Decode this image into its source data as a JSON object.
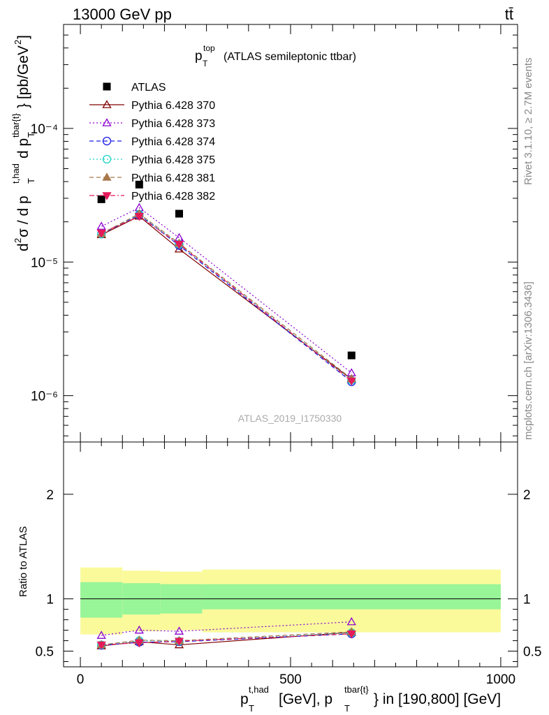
{
  "header": {
    "left": "13000 GeV pp",
    "right": "tt̄",
    "side_top": "Rivet 3.1.10, ≥ 2.7M events",
    "side_bottom": "mcplots.cern.ch [arXiv:1306.3436]",
    "watermark": "ATLAS_2019_I1750330"
  },
  "colors": {
    "data": "#000000",
    "s370": "#800000",
    "s373": "#8B00D0",
    "s374": "#1E1EE6",
    "s375": "#1ED2C8",
    "s381": "#A8784C",
    "s382": "#E6195A",
    "band_inner": "#98F598",
    "band_outer": "#FAFA9B"
  },
  "chart_data": [
    {
      "type": "line",
      "panel": "main",
      "title": "p_T^top (ATLAS semileptonic ttbar)",
      "xlabel": "p_T^{t,had} [GeV], p_T^{tbar{t}} in [190,800] [GeV]",
      "ylabel": "d²σ / d p_T^{t,had} d p_T^{tbar{t}} [pb/GeV²]",
      "yscale": "log",
      "xlim": [
        -40,
        1040
      ],
      "ylim": [
        4.5e-07,
        0.0006
      ],
      "x": [
        50,
        140,
        235,
        645
      ],
      "xerr": [
        [
          0,
          100
        ],
        [
          100,
          190
        ],
        [
          190,
          290
        ],
        [
          290,
          1000
        ]
      ],
      "ytick_labels": [
        "10⁻⁶",
        "10⁻⁵",
        "10⁻⁴"
      ],
      "series": [
        {
          "name": "ATLAS",
          "values": [
            2.95e-05,
            3.8e-05,
            2.3e-05,
            2e-06
          ],
          "marker": "square",
          "style": "none",
          "color_key": "data"
        },
        {
          "name": "Pythia 6.428 370",
          "values": [
            1.6e-05,
            2.2e-05,
            1.25e-05,
            1.33e-06
          ],
          "marker": "triangle-open",
          "style": "solid",
          "color_key": "s370"
        },
        {
          "name": "Pythia 6.428 373",
          "values": [
            1.85e-05,
            2.55e-05,
            1.52e-05,
            1.48e-06
          ],
          "marker": "triangle-open",
          "style": "dotted",
          "color_key": "s373"
        },
        {
          "name": "Pythia 6.428 374",
          "values": [
            1.62e-05,
            2.25e-05,
            1.33e-05,
            1.27e-06
          ],
          "marker": "circle-open",
          "style": "dashed",
          "color_key": "s374"
        },
        {
          "name": "Pythia 6.428 375",
          "values": [
            1.62e-05,
            2.28e-05,
            1.36e-05,
            1.3e-06
          ],
          "marker": "circle-open",
          "style": "dotted",
          "color_key": "s375"
        },
        {
          "name": "Pythia 6.428 381",
          "values": [
            1.63e-05,
            2.3e-05,
            1.38e-05,
            1.34e-06
          ],
          "marker": "triangle-filled",
          "style": "dashed",
          "color_key": "s381"
        },
        {
          "name": "Pythia 6.428 382",
          "values": [
            1.65e-05,
            2.2e-05,
            1.36e-05,
            1.29e-06
          ],
          "marker": "triangle-down-filled",
          "style": "dashdot",
          "color_key": "s382"
        }
      ]
    },
    {
      "type": "line",
      "panel": "ratio",
      "ylabel": "Ratio to ATLAS",
      "xlabel": "p_T^{t,had} [GeV], p_T^{tbar{t}} in [190,800] [GeV]",
      "xlim": [
        -40,
        1040
      ],
      "ylim": [
        0.35,
        2.5
      ],
      "x": [
        50,
        140,
        235,
        645
      ],
      "x_ticks": [
        0,
        500,
        1000
      ],
      "y_ticks": [
        0.5,
        1,
        2
      ],
      "band_bins": [
        [
          0,
          100
        ],
        [
          100,
          190
        ],
        [
          190,
          290
        ],
        [
          290,
          1000
        ]
      ],
      "band_inner": [
        [
          0.82,
          1.16
        ],
        [
          0.85,
          1.15
        ],
        [
          0.86,
          1.14
        ],
        [
          0.9,
          1.14
        ]
      ],
      "band_outer": [
        [
          0.66,
          1.3
        ],
        [
          0.69,
          1.27
        ],
        [
          0.7,
          1.26
        ],
        [
          0.68,
          1.28
        ]
      ],
      "series": [
        {
          "name": "Pythia 6.428 370",
          "values": [
            0.55,
            0.59,
            0.56,
            0.68
          ],
          "color_key": "s370",
          "marker": "triangle-open",
          "style": "solid"
        },
        {
          "name": "Pythia 6.428 373",
          "values": [
            0.65,
            0.7,
            0.69,
            0.78
          ],
          "color_key": "s373",
          "marker": "triangle-open",
          "style": "dotted"
        },
        {
          "name": "Pythia 6.428 374",
          "values": [
            0.555,
            0.585,
            0.59,
            0.665
          ],
          "color_key": "s374",
          "marker": "circle-open",
          "style": "dashed"
        },
        {
          "name": "Pythia 6.428 375",
          "values": [
            0.56,
            0.6,
            0.595,
            0.675
          ],
          "color_key": "s375",
          "marker": "circle-open",
          "style": "dotted"
        },
        {
          "name": "Pythia 6.428 381",
          "values": [
            0.56,
            0.605,
            0.6,
            0.685
          ],
          "color_key": "s381",
          "marker": "triangle-filled",
          "style": "dashed"
        },
        {
          "name": "Pythia 6.428 382",
          "values": [
            0.56,
            0.58,
            0.595,
            0.665
          ],
          "color_key": "s382",
          "marker": "triangle-down-filled",
          "style": "dashdot"
        }
      ]
    }
  ]
}
